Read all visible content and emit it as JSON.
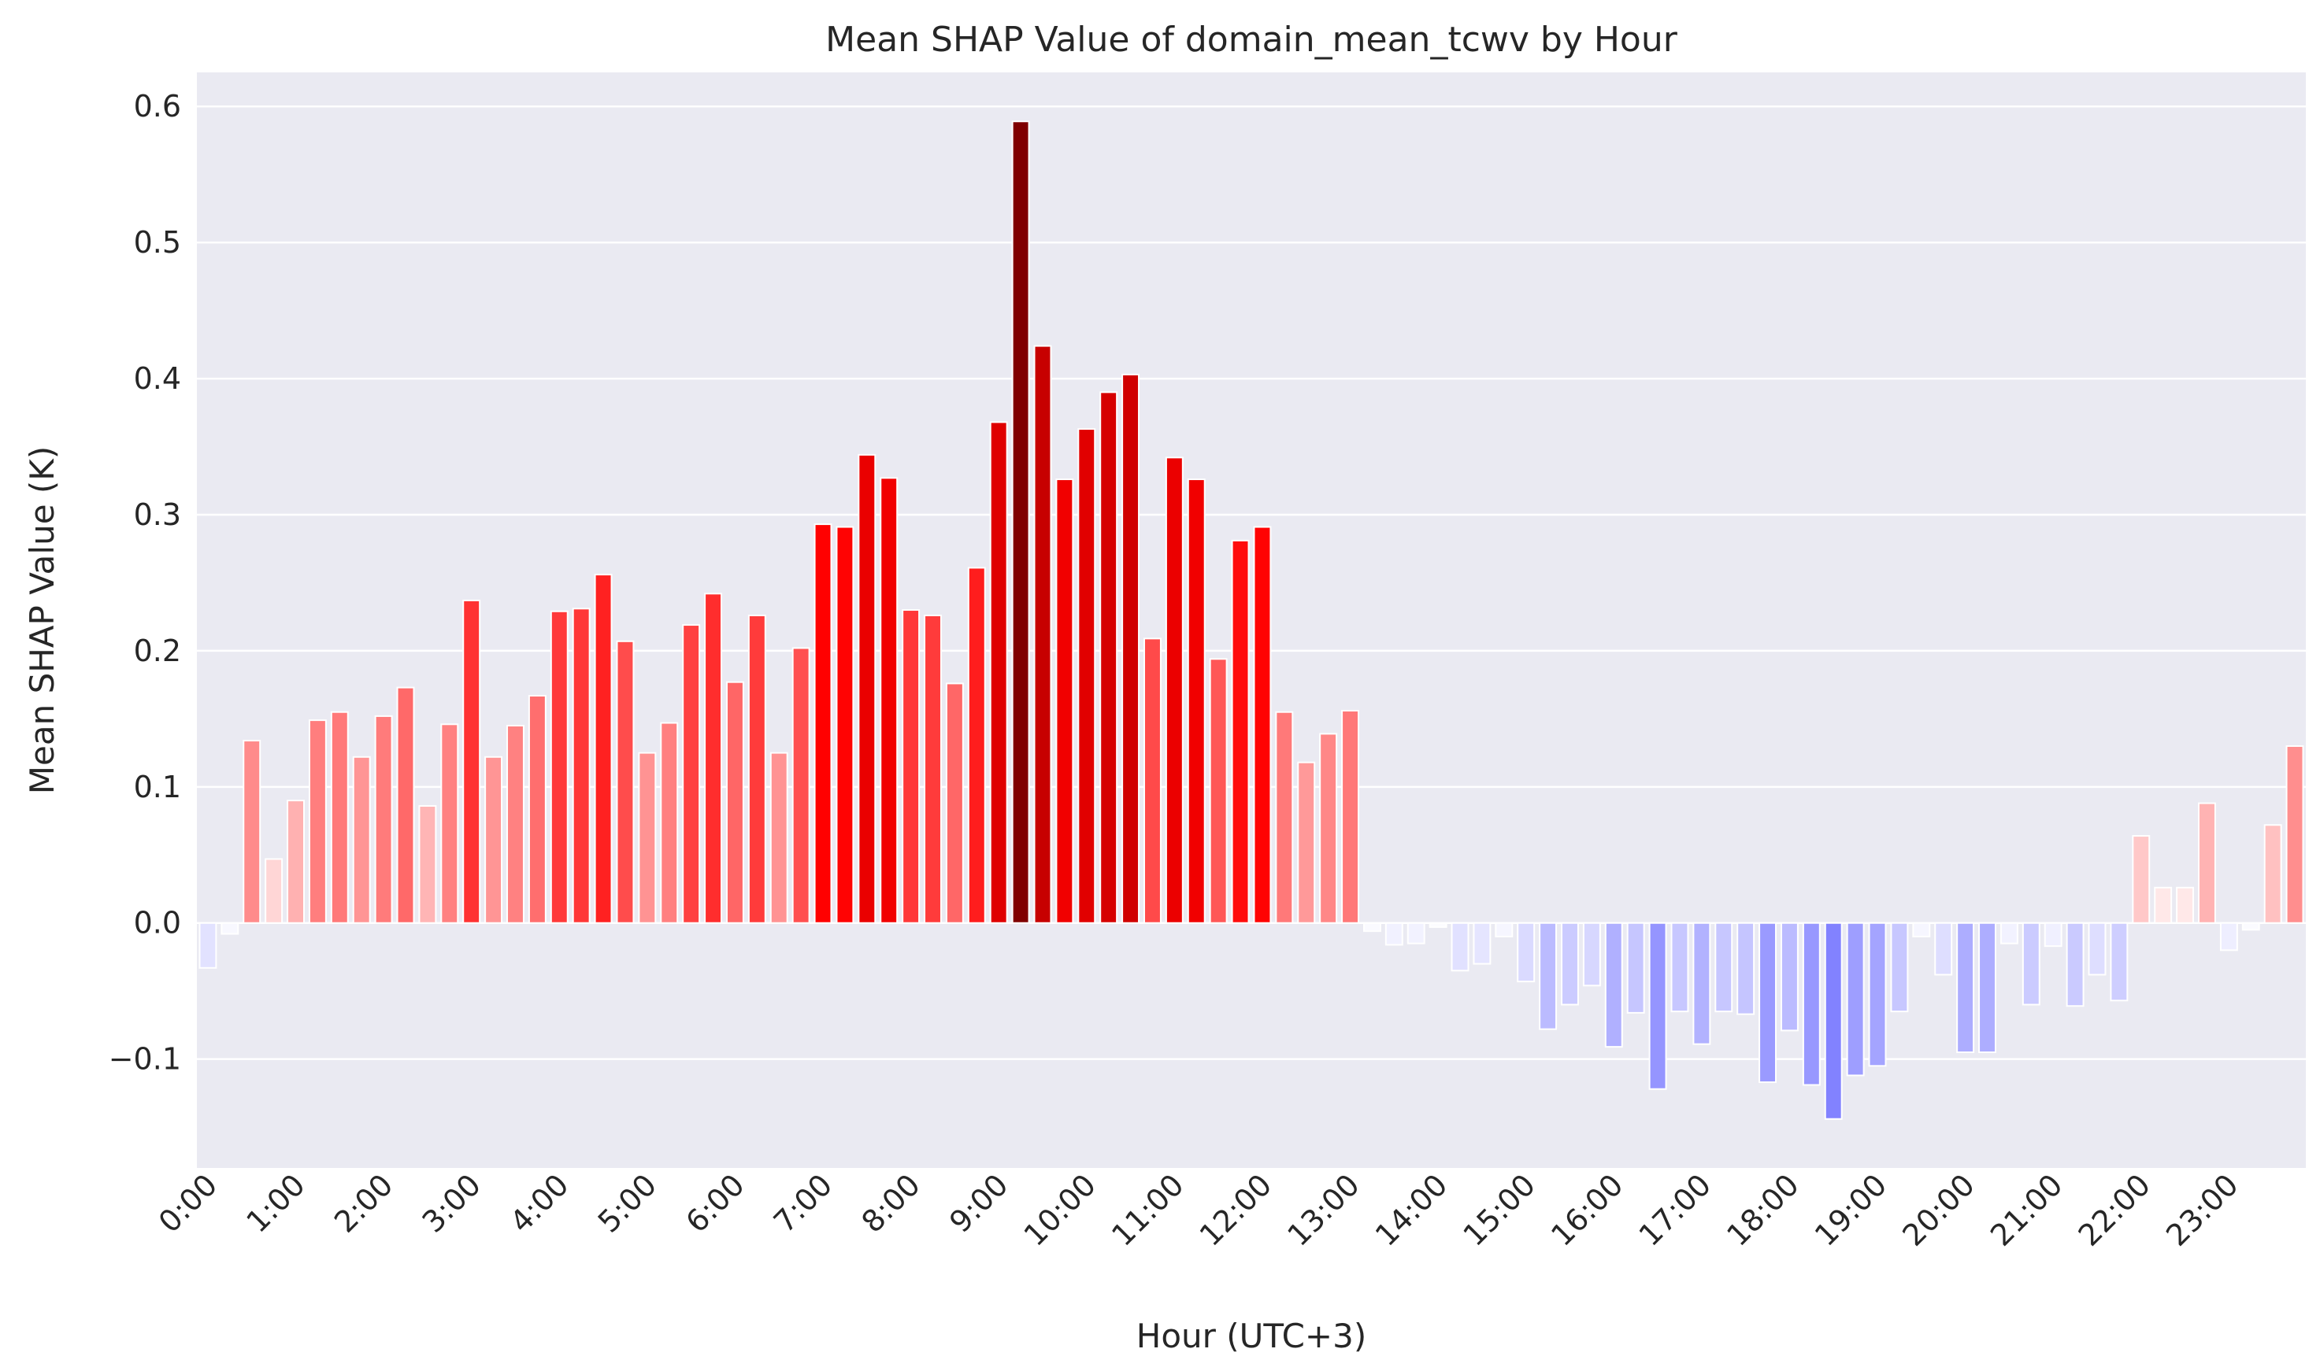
{
  "chart_data": {
    "type": "bar",
    "title": "Mean SHAP Value of domain_mean_tcwv by Hour",
    "xlabel": "Hour (UTC+3)",
    "ylabel": "Mean SHAP Value (K)",
    "ylim": [
      -0.18,
      0.625
    ],
    "yticks": [
      -0.1,
      0.0,
      0.1,
      0.2,
      0.3,
      0.4,
      0.5,
      0.6
    ],
    "ytick_labels": [
      "−0.1",
      "0.0",
      "0.1",
      "0.2",
      "0.3",
      "0.4",
      "0.5",
      "0.6"
    ],
    "xtick_labels": [
      "0:00",
      "1:00",
      "2:00",
      "3:00",
      "4:00",
      "5:00",
      "6:00",
      "7:00",
      "8:00",
      "9:00",
      "10:00",
      "11:00",
      "12:00",
      "13:00",
      "14:00",
      "15:00",
      "16:00",
      "17:00",
      "18:00",
      "19:00",
      "20:00",
      "21:00",
      "22:00",
      "23:00"
    ],
    "xtick_every": 4,
    "bar_interval_minutes": 15,
    "grid": true,
    "legend": "none",
    "colormap": "seismic",
    "background": "#eaeaf2",
    "values": [
      -0.033,
      -0.008,
      0.134,
      0.047,
      0.09,
      0.149,
      0.155,
      0.122,
      0.152,
      0.173,
      0.086,
      0.146,
      0.237,
      0.122,
      0.145,
      0.167,
      0.229,
      0.231,
      0.256,
      0.207,
      0.125,
      0.147,
      0.219,
      0.242,
      0.177,
      0.226,
      0.125,
      0.202,
      0.293,
      0.291,
      0.344,
      0.327,
      0.23,
      0.226,
      0.176,
      0.261,
      0.368,
      0.589,
      0.424,
      0.326,
      0.363,
      0.39,
      0.403,
      0.209,
      0.342,
      0.326,
      0.194,
      0.281,
      0.291,
      0.155,
      0.118,
      0.139,
      0.156,
      -0.006,
      -0.016,
      -0.015,
      -0.003,
      -0.035,
      -0.03,
      -0.01,
      -0.043,
      -0.078,
      -0.06,
      -0.046,
      -0.091,
      -0.066,
      -0.122,
      -0.065,
      -0.089,
      -0.065,
      -0.067,
      -0.117,
      -0.079,
      -0.119,
      -0.144,
      -0.112,
      -0.105,
      -0.065,
      -0.01,
      -0.038,
      -0.095,
      -0.095,
      -0.015,
      -0.06,
      -0.017,
      -0.061,
      -0.038,
      -0.057,
      0.064,
      0.026,
      0.026,
      0.088,
      -0.02,
      -0.005,
      0.072,
      0.13
    ]
  }
}
